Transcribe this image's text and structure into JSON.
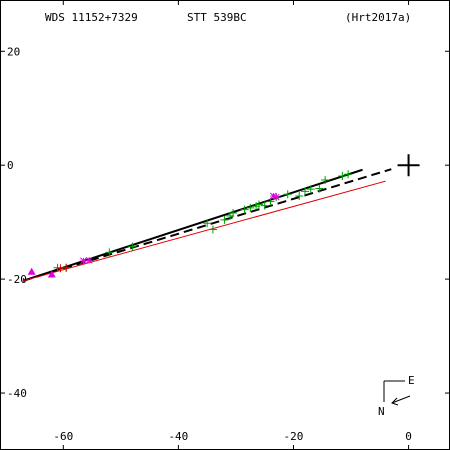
{
  "header": {
    "wds": "WDS 11152+7329",
    "name": "STT 539BC",
    "ref": "(Hrt2017a)"
  },
  "compass": {
    "east": "E",
    "north": "N"
  },
  "colors": {
    "green": "#00a000",
    "magenta": "#e000e0",
    "red": "#e00000",
    "axis": "#000000"
  },
  "chart_data": {
    "type": "scatter",
    "title": "",
    "xlabel": "",
    "ylabel": "",
    "x_ticks": [
      -60,
      -40,
      -20,
      0
    ],
    "y_ticks": [
      20,
      0,
      -20,
      -40
    ],
    "xlim": [
      -71,
      7.2
    ],
    "ylim": [
      -50,
      29
    ],
    "grid": false,
    "origin_marker": {
      "x": 0,
      "y": 0
    },
    "lines": [
      {
        "name": "",
        "style": "solid-black",
        "points": [
          [
            -67,
            -20.3
          ],
          [
            -8,
            -0.8
          ]
        ]
      },
      {
        "name": "",
        "style": "dashed-black",
        "points": [
          [
            -67,
            -20.3
          ],
          [
            -3,
            -0.7
          ]
        ]
      },
      {
        "name": "",
        "style": "solid-red",
        "points": [
          [
            -67,
            -20.3
          ],
          [
            -4,
            -2.8
          ]
        ]
      }
    ],
    "series": [
      {
        "name": "",
        "marker": "plus-green",
        "points": [
          [
            -61,
            -18.0
          ],
          [
            -59.5,
            -18.0
          ],
          [
            -52,
            -15.3
          ],
          [
            -48,
            -14.3
          ],
          [
            -35,
            -10.2
          ],
          [
            -34,
            -11.3
          ],
          [
            -32,
            -9.6
          ],
          [
            -31,
            -8.9
          ],
          [
            -30.5,
            -8.4
          ],
          [
            -28.5,
            -7.8
          ],
          [
            -27.5,
            -7.5
          ],
          [
            -26.5,
            -7.2
          ],
          [
            -26,
            -6.9
          ],
          [
            -25,
            -7.1
          ],
          [
            -24,
            -6.4
          ],
          [
            -23,
            -5.6
          ],
          [
            -21,
            -5.1
          ],
          [
            -19,
            -5.4
          ],
          [
            -18,
            -4.6
          ],
          [
            -17,
            -4.2
          ],
          [
            -15.5,
            -4.1
          ],
          [
            -14.5,
            -2.6
          ],
          [
            -11.5,
            -1.9
          ],
          [
            -10.5,
            -1.6
          ]
        ]
      },
      {
        "name": "",
        "marker": "plus-red",
        "points": [
          [
            -60.5,
            -18.1
          ],
          [
            -59.5,
            -18.0
          ]
        ]
      },
      {
        "name": "",
        "marker": "star-magenta",
        "points": [
          [
            -56.5,
            -16.8
          ],
          [
            -55.5,
            -16.7
          ],
          [
            -23.5,
            -5.4
          ],
          [
            -23,
            -5.6
          ]
        ]
      },
      {
        "name": "",
        "marker": "triangle-magenta",
        "points": [
          [
            -65.5,
            -18.7
          ],
          [
            -62,
            -19.2
          ]
        ]
      }
    ]
  }
}
